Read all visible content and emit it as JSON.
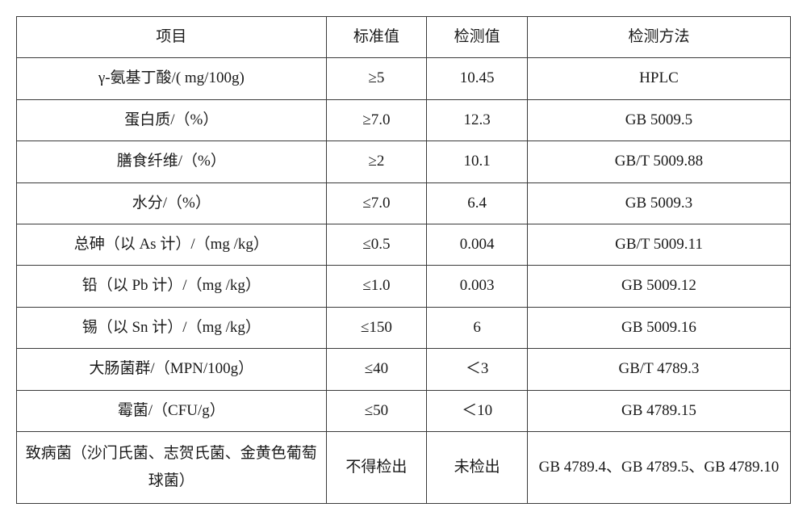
{
  "table": {
    "columns": [
      "项目",
      "标准值",
      "检测值",
      "检测方法"
    ],
    "rows": [
      {
        "item": "γ-氨基丁酸/( mg/100g)",
        "std": "≥5",
        "det": "10.45",
        "method": "HPLC"
      },
      {
        "item": "蛋白质/（%）",
        "std": "≥7.0",
        "det": "12.3",
        "method": "GB 5009.5"
      },
      {
        "item": "膳食纤维/（%）",
        "std": "≥2",
        "det": "10.1",
        "method": "GB/T 5009.88"
      },
      {
        "item": "水分/（%）",
        "std": "≤7.0",
        "det": "6.4",
        "method": "GB 5009.3"
      },
      {
        "item": "总砷（以 As 计）/（mg /kg）",
        "std": "≤0.5",
        "det": "0.004",
        "method": "GB/T 5009.11"
      },
      {
        "item": "铅（以 Pb 计）/（mg /kg）",
        "std": "≤1.0",
        "det": "0.003",
        "method": "GB 5009.12"
      },
      {
        "item": "锡（以 Sn 计）/（mg /kg）",
        "std": "≤150",
        "det": "6",
        "method": "GB 5009.16"
      },
      {
        "item": "大肠菌群/（MPN/100g）",
        "std": "≤40",
        "det": "＜3",
        "method": "GB/T 4789.3"
      },
      {
        "item": "霉菌/（CFU/g）",
        "std": "≤50",
        "det": "＜10",
        "method": "GB 4789.15"
      },
      {
        "item": "致病菌（沙门氏菌、志贺氏菌、金黄色葡萄球菌）",
        "std": "不得检出",
        "det": "未检出",
        "method": "GB 4789.4、GB 4789.5、GB 4789.10"
      }
    ],
    "styling": {
      "border_color": "#3a3a3a",
      "border_width": 1.5,
      "text_color": "#1a1a1a",
      "background_color": "#ffffff",
      "font_size": 19,
      "font_family": "SimSun",
      "col_widths_pct": [
        40,
        13,
        13,
        34
      ],
      "cell_align": "center",
      "line_height": 1.6
    }
  }
}
